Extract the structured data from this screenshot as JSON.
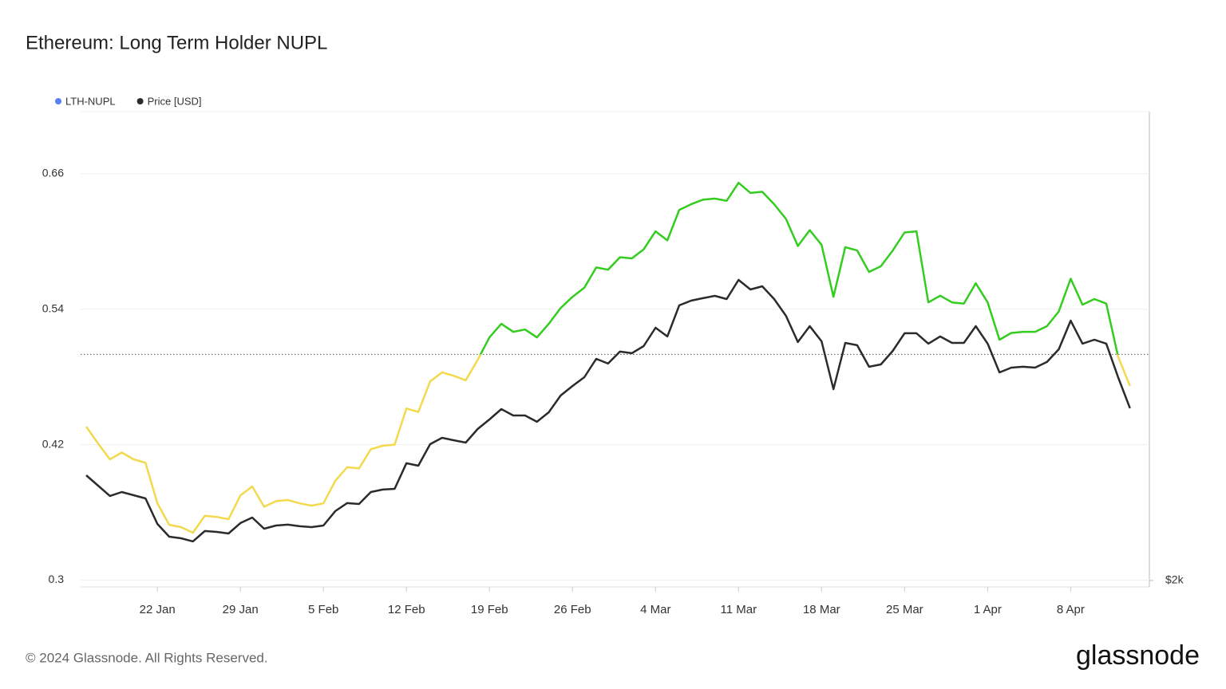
{
  "chart_data": {
    "type": "line",
    "title": "Ethereum: Long Term Holder NUPL",
    "categories": [
      null,
      null,
      null,
      null,
      null,
      null,
      "22 Jan",
      null,
      null,
      null,
      null,
      null,
      null,
      "29 Jan",
      null,
      null,
      null,
      null,
      null,
      null,
      "5 Feb",
      null,
      null,
      null,
      null,
      null,
      null,
      "12 Feb",
      null,
      null,
      null,
      null,
      null,
      null,
      "19 Feb",
      null,
      null,
      null,
      null,
      null,
      null,
      "26 Feb",
      null,
      null,
      null,
      null,
      null,
      null,
      "4 Mar",
      null,
      null,
      null,
      null,
      null,
      null,
      "11 Mar",
      null,
      null,
      null,
      null,
      null,
      null,
      "18 Mar",
      null,
      null,
      null,
      null,
      null,
      null,
      "25 Mar",
      null,
      null,
      null,
      null,
      null,
      null,
      "1 Apr",
      null,
      null,
      null,
      null,
      null,
      null,
      "8 Apr",
      null,
      null,
      null,
      null,
      null
    ],
    "series": [
      {
        "name": "LTH-NUPL",
        "color": "#5b7ef0",
        "below_color": "#f2d94e",
        "above_color": "#33cc1f",
        "threshold": 0.5,
        "values": [
          0.436,
          0.421,
          0.407,
          0.413,
          0.407,
          0.404,
          0.368,
          0.349,
          0.347,
          0.342,
          0.357,
          0.356,
          0.354,
          0.375,
          0.383,
          0.365,
          0.37,
          0.371,
          0.368,
          0.366,
          0.368,
          0.388,
          0.4,
          0.399,
          0.416,
          0.419,
          0.42,
          0.452,
          0.449,
          0.476,
          0.484,
          0.481,
          0.477,
          0.495,
          0.515,
          0.527,
          0.52,
          0.522,
          0.515,
          0.527,
          0.541,
          0.551,
          0.559,
          0.577,
          0.575,
          0.586,
          0.585,
          0.593,
          0.609,
          0.601,
          0.628,
          0.633,
          0.637,
          0.638,
          0.636,
          0.652,
          0.643,
          0.644,
          0.633,
          0.62,
          0.596,
          0.61,
          0.597,
          0.551,
          0.595,
          0.592,
          0.573,
          0.578,
          0.592,
          0.608,
          0.609,
          0.546,
          0.552,
          0.546,
          0.545,
          0.563,
          0.546,
          0.513,
          0.519,
          0.52,
          0.52,
          0.525,
          0.538,
          0.567,
          0.544,
          0.549,
          0.545,
          0.498,
          0.472
        ]
      },
      {
        "name": "Price [USD]",
        "color": "#2b2b2b",
        "axis": "y2",
        "values": [
          2723,
          2652,
          2581,
          2608,
          2586,
          2564,
          2389,
          2301,
          2290,
          2269,
          2340,
          2334,
          2323,
          2395,
          2433,
          2356,
          2378,
          2384,
          2373,
          2367,
          2378,
          2477,
          2532,
          2526,
          2608,
          2625,
          2630,
          2806,
          2789,
          2937,
          2981,
          2964,
          2948,
          3041,
          3107,
          3178,
          3134,
          3134,
          3091,
          3156,
          3271,
          3337,
          3397,
          3523,
          3491,
          3573,
          3562,
          3611,
          3737,
          3677,
          3891,
          3923,
          3940,
          3956,
          3934,
          4066,
          4000,
          4022,
          3934,
          3819,
          3639,
          3748,
          3644,
          3315,
          3633,
          3617,
          3469,
          3485,
          3578,
          3699,
          3699,
          3628,
          3677,
          3633,
          3633,
          3748,
          3628,
          3430,
          3463,
          3469,
          3463,
          3502,
          3589,
          3786,
          3628,
          3655,
          3628,
          3397,
          3184
        ]
      }
    ],
    "ylim": [
      0.294,
      0.715
    ],
    "yticks": [
      0.3,
      0.42,
      0.54,
      0.66
    ],
    "y2lim": [
      1956,
      5222
    ],
    "y2ticks": [
      {
        "value": 2000,
        "label": "$2k"
      }
    ],
    "grid": true,
    "legend": "top-left",
    "copyright": "© 2024 Glassnode. All Rights Reserved.",
    "brand": "glassnode"
  }
}
